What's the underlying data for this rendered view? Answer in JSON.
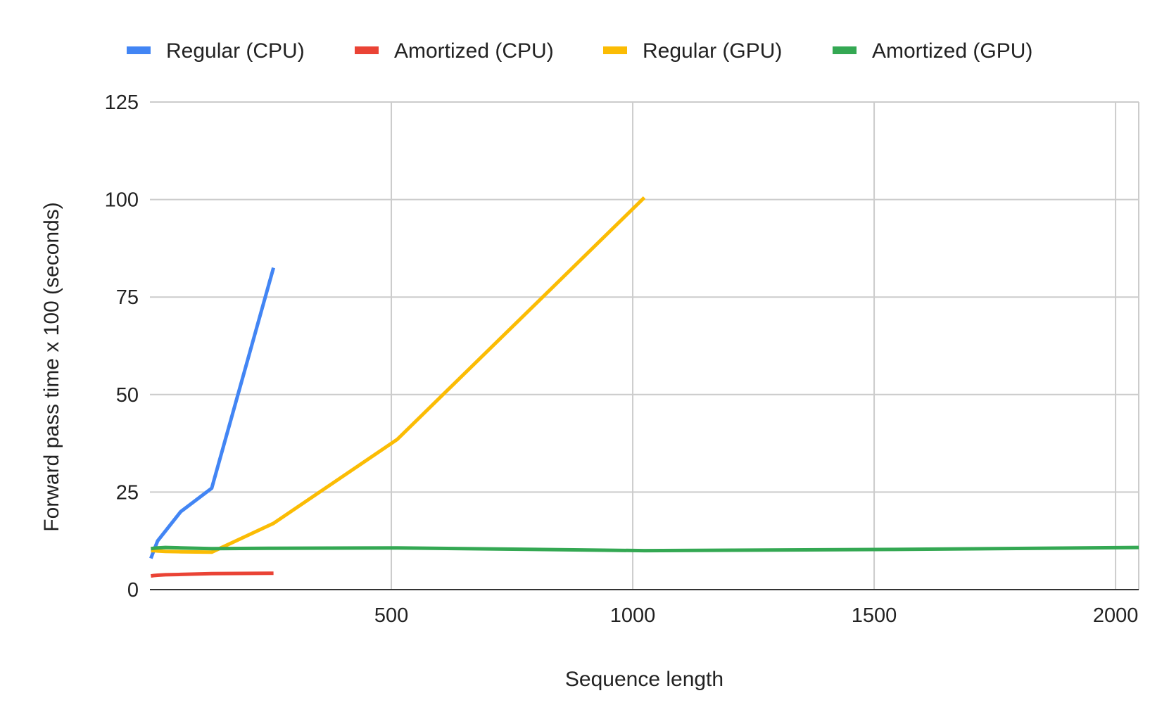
{
  "chart_data": {
    "type": "line",
    "title": "",
    "xlabel": "Sequence length",
    "ylabel": "Forward pass time x 100 (seconds)",
    "xlim": [
      0,
      2048
    ],
    "ylim": [
      0,
      125
    ],
    "xticks": [
      500,
      1000,
      1500,
      2000
    ],
    "yticks": [
      0,
      25,
      50,
      75,
      100,
      125
    ],
    "grid": true,
    "legend_position": "top",
    "series": [
      {
        "name": "Regular (CPU)",
        "color": "#4285F4",
        "x": [
          2,
          8,
          16,
          32,
          64,
          128,
          256
        ],
        "y": [
          8,
          10,
          12.5,
          15,
          20,
          26,
          82.5
        ]
      },
      {
        "name": "Amortized (CPU)",
        "color": "#EA4335",
        "x": [
          2,
          8,
          16,
          32,
          64,
          128,
          256
        ],
        "y": [
          3.5,
          3.6,
          3.7,
          3.8,
          3.9,
          4.1,
          4.2
        ]
      },
      {
        "name": "Regular (GPU)",
        "color": "#FBBC04",
        "x": [
          2,
          8,
          16,
          32,
          64,
          128,
          256,
          512,
          1024
        ],
        "y": [
          10,
          10,
          9.9,
          9.8,
          9.7,
          9.6,
          17,
          38.5,
          100.5
        ]
      },
      {
        "name": "Amortized (GPU)",
        "color": "#34A853",
        "x": [
          2,
          8,
          16,
          32,
          64,
          128,
          256,
          512,
          1024,
          1536,
          2048
        ],
        "y": [
          10.5,
          10.6,
          10.7,
          10.8,
          10.7,
          10.5,
          10.6,
          10.7,
          10,
          10.3,
          10.8
        ]
      }
    ]
  }
}
